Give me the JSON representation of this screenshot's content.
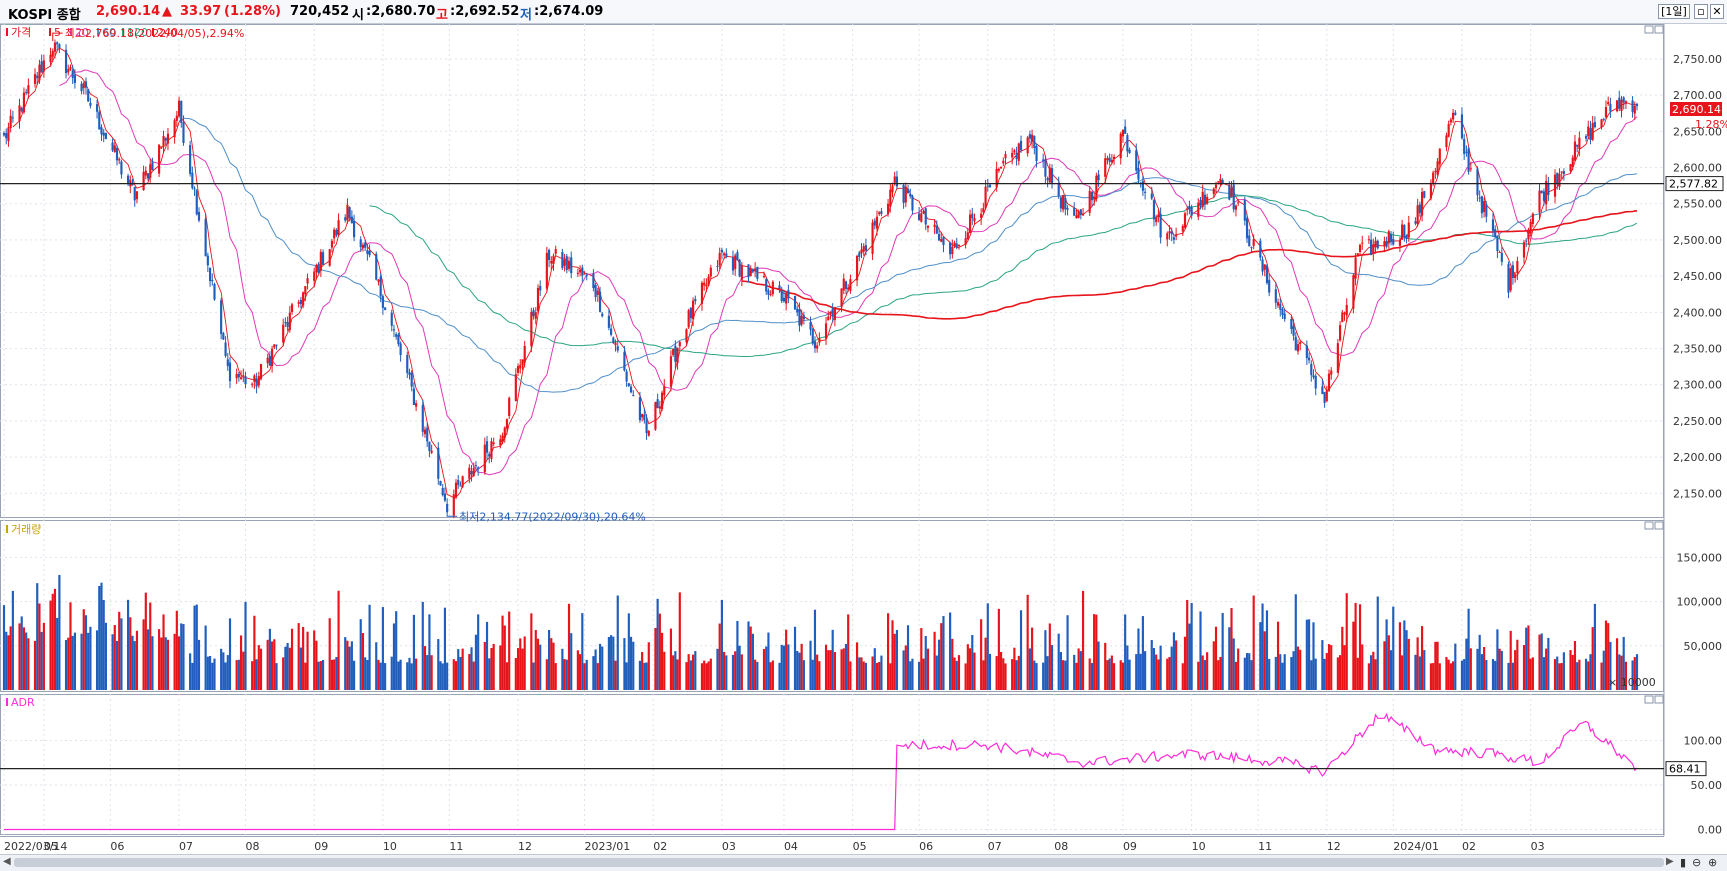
{
  "header": {
    "name": "KOSPI 종합",
    "price": "2,690.14",
    "change_arrow": "▲",
    "change": "33.97",
    "change_pct": "(1.28%)",
    "volume": "720,452",
    "open_label": "시",
    "open": ":2,680.70",
    "high_label": "고",
    "high": ":2,692.52",
    "low_label": "저",
    "low": ":2,674.09",
    "period_button": "[1일]"
  },
  "colors": {
    "up": "#e8141b",
    "down": "#1f5ebd",
    "ma5": "#e8141b",
    "ma20": "#e03ab8",
    "ma60": "#4f8fc9",
    "ma120": "#2aa583",
    "ma240": "#e8141b",
    "adr": "#ff2bd8"
  },
  "price_panel": {
    "legend": {
      "price": "가격",
      "ma5": "5",
      "ma20": "20",
      "ma60": "60",
      "ma120": "120",
      "ma240": "240"
    },
    "high_annotation": "최고2,769.18(2022/04/05),2.94%",
    "low_annotation": "최저2,134.77(2022/09/30),20.64%",
    "y_ticks": [
      "2,750.00",
      "2,700.00",
      "2,650.00",
      "2,600.00",
      "2,550.00",
      "2,500.00",
      "2,450.00",
      "2,400.00",
      "2,350.00",
      "2,300.00",
      "2,250.00",
      "2,200.00",
      "2,150.00"
    ],
    "current_label": "2,690.14",
    "current_pct": "1.28%",
    "hline_label": "2,577.82"
  },
  "volume_panel": {
    "legend": "거래량",
    "y_ticks": [
      "150,000",
      "100,000",
      "50,000"
    ],
    "unit": "× 10000"
  },
  "adr_panel": {
    "legend": "ADR",
    "y_ticks": [
      "100.00",
      "50.00",
      "0.00"
    ],
    "current_label": "68.41"
  },
  "x_ticks": [
    "2022/03/14",
    "05",
    "06",
    "07",
    "08",
    "09",
    "10",
    "11",
    "12",
    "2023/01",
    "02",
    "03",
    "04",
    "05",
    "06",
    "07",
    "08",
    "09",
    "10",
    "11",
    "12",
    "2024/01",
    "02",
    "03"
  ],
  "chart_data": {
    "type": "candlestick",
    "title": "KOSPI 종합",
    "x_range": [
      "2022/03/14",
      "2024/03"
    ],
    "price_ylim": [
      2120,
      2790
    ],
    "volume_ylim": [
      0,
      190000
    ],
    "adr_ylim": [
      -5,
      150
    ],
    "price_anchors": [
      [
        "2022/03/14",
        2640
      ],
      [
        "2022/04/05",
        2769.18
      ],
      [
        "2022/04/20",
        2700
      ],
      [
        "2022/05/12",
        2560
      ],
      [
        "2022/06/01",
        2680
      ],
      [
        "2022/06/23",
        2320
      ],
      [
        "2022/07/05",
        2300
      ],
      [
        "2022/08/16",
        2540
      ],
      [
        "2022/09/01",
        2420
      ],
      [
        "2022/09/30",
        2134.77
      ],
      [
        "2022/10/25",
        2240
      ],
      [
        "2022/11/15",
        2480
      ],
      [
        "2022/12/05",
        2440
      ],
      [
        "2022/12/29",
        2230
      ],
      [
        "2023/01/15",
        2380
      ],
      [
        "2023/02/01",
        2480
      ],
      [
        "2023/03/01",
        2420
      ],
      [
        "2023/03/15",
        2360
      ],
      [
        "2023/04/03",
        2470
      ],
      [
        "2023/04/20",
        2580
      ],
      [
        "2023/05/15",
        2480
      ],
      [
        "2023/06/10",
        2610
      ],
      [
        "2023/06/20",
        2640
      ],
      [
        "2023/07/10",
        2520
      ],
      [
        "2023/08/01",
        2650
      ],
      [
        "2023/08/20",
        2500
      ],
      [
        "2023/09/15",
        2590
      ],
      [
        "2023/10/10",
        2410
      ],
      [
        "2023/10/31",
        2280
      ],
      [
        "2023/11/15",
        2480
      ],
      [
        "2023/12/10",
        2520
      ],
      [
        "2023/12/28",
        2670
      ],
      [
        "2024/01/10",
        2550
      ],
      [
        "2024/01/22",
        2440
      ],
      [
        "2024/02/05",
        2560
      ],
      [
        "2024/02/28",
        2650
      ],
      [
        "2024/03/10",
        2690
      ],
      [
        "2024/03/20",
        2690.14
      ]
    ],
    "moving_averages": [
      "5",
      "20",
      "60",
      "120",
      "240"
    ],
    "horizontal_line": 2577.82,
    "volume_range": [
      20000,
      170000
    ],
    "adr_series": [
      [
        "2022/03/14",
        0
      ],
      [
        "2023/04/20",
        0
      ],
      [
        "2023/04/21",
        95
      ],
      [
        "2023/06/01",
        95
      ],
      [
        "2023/07/15",
        75
      ],
      [
        "2023/09/01",
        85
      ],
      [
        "2023/10/15",
        75
      ],
      [
        "2023/10/31",
        65
      ],
      [
        "2023/11/25",
        130
      ],
      [
        "2023/12/20",
        90
      ],
      [
        "2024/01/15",
        85
      ],
      [
        "2024/02/05",
        75
      ],
      [
        "2024/02/25",
        120
      ],
      [
        "2024/03/20",
        68.41
      ]
    ]
  }
}
